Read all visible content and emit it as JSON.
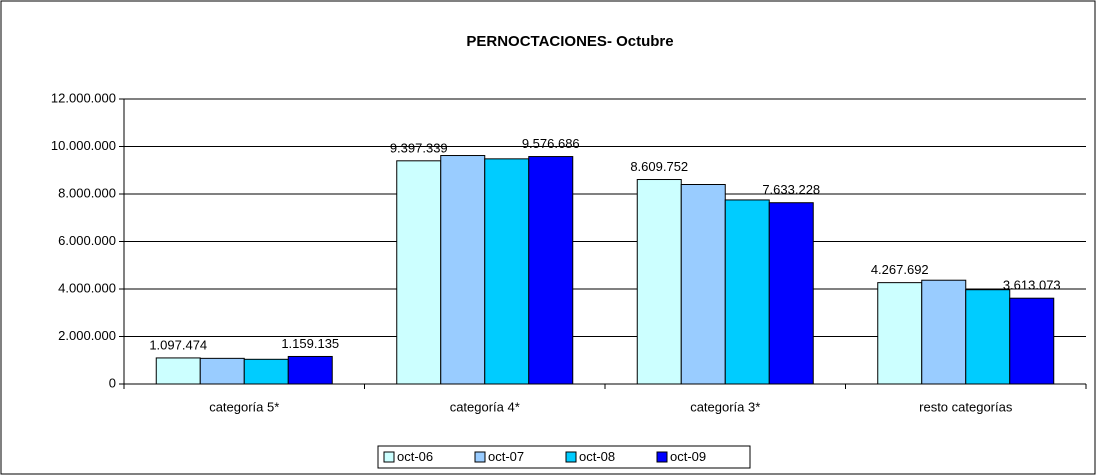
{
  "chart_data": {
    "type": "bar",
    "title": "PERNOCTACIONES- Octubre",
    "categories": [
      "categoría 5*",
      "categoría 4*",
      "categoría 3*",
      "resto categorías"
    ],
    "series": [
      {
        "name": "oct-06",
        "color": "#ccffff",
        "values": [
          1097474,
          9397339,
          8609752,
          4267692
        ],
        "value_labels": [
          "1.097.474",
          "9.397.339",
          "8.609.752",
          "4.267.692"
        ]
      },
      {
        "name": "oct-07",
        "color": "#99ccff",
        "values": [
          1080000,
          9620000,
          8400000,
          4370000
        ]
      },
      {
        "name": "oct-08",
        "color": "#00ccff",
        "values": [
          1040000,
          9480000,
          7750000,
          3970000
        ]
      },
      {
        "name": "oct-09",
        "color": "#0000ff",
        "values": [
          1159135,
          9576686,
          7633228,
          3613073
        ],
        "value_labels": [
          "1.159.135",
          "9.576.686",
          "7.633.228",
          "3.613.073"
        ]
      }
    ],
    "ylim": [
      0,
      12000000
    ],
    "yticks": [
      0,
      {
        "value": 2000000,
        "label": "2.000.000"
      },
      {
        "value": 4000000,
        "label": "4.000.000"
      },
      {
        "value": 6000000,
        "label": "6.000.000"
      },
      {
        "value": 8000000,
        "label": "8.000.000"
      },
      {
        "value": 10000000,
        "label": "10.000.000"
      },
      {
        "value": 12000000,
        "label": "12.000.000"
      }
    ],
    "grid": true,
    "legend": "bottom"
  }
}
